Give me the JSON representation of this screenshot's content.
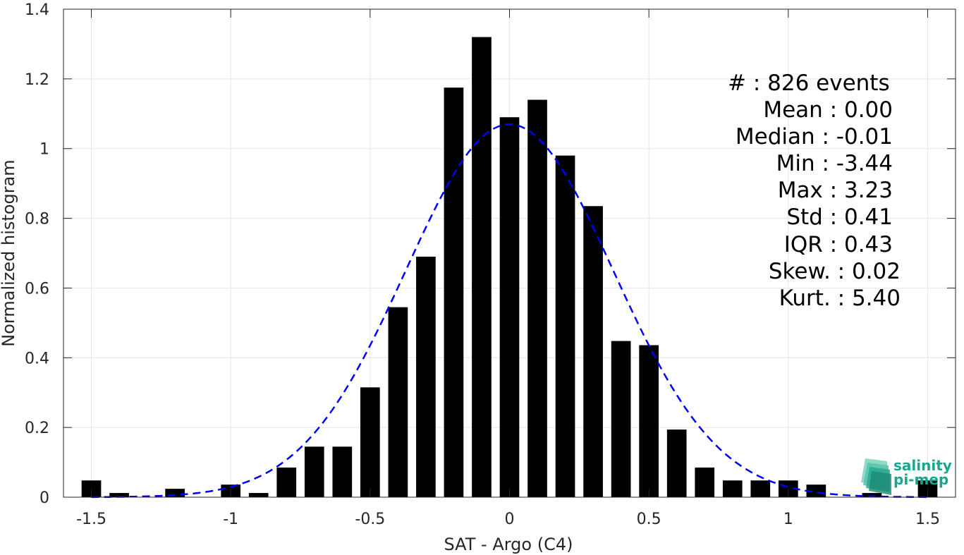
{
  "chart_data": {
    "type": "bar",
    "xlabel": "SAT - Argo (C4)",
    "ylabel": "Normalized histogram",
    "xlim": [
      -1.6,
      1.6
    ],
    "ylim": [
      0,
      1.4
    ],
    "xticks": [
      -1.5,
      -1,
      -0.5,
      0,
      0.5,
      1,
      1.5
    ],
    "xtick_labels": [
      "-1.5",
      "-1",
      "-0.5",
      "0",
      "0.5",
      "1",
      "1.5"
    ],
    "yticks": [
      0,
      0.2,
      0.4,
      0.6,
      0.8,
      1,
      1.2,
      1.4
    ],
    "ytick_labels": [
      "0",
      "0.2",
      "0.4",
      "0.6",
      "0.8",
      "1",
      "1.2",
      "1.4"
    ],
    "grid": true,
    "bar_color": "#000000",
    "curve_color": "#0000ff",
    "bins": [
      {
        "x": -1.5,
        "y": 0.048
      },
      {
        "x": -1.4,
        "y": 0.012
      },
      {
        "x": -1.2,
        "y": 0.024
      },
      {
        "x": -1.0,
        "y": 0.036
      },
      {
        "x": -0.9,
        "y": 0.012
      },
      {
        "x": -0.8,
        "y": 0.085
      },
      {
        "x": -0.7,
        "y": 0.145
      },
      {
        "x": -0.6,
        "y": 0.145
      },
      {
        "x": -0.5,
        "y": 0.315
      },
      {
        "x": -0.4,
        "y": 0.545
      },
      {
        "x": -0.3,
        "y": 0.69
      },
      {
        "x": -0.2,
        "y": 1.175
      },
      {
        "x": -0.1,
        "y": 1.32
      },
      {
        "x": 0.0,
        "y": 1.09
      },
      {
        "x": 0.1,
        "y": 1.14
      },
      {
        "x": 0.2,
        "y": 0.98
      },
      {
        "x": 0.3,
        "y": 0.835
      },
      {
        "x": 0.4,
        "y": 0.448
      },
      {
        "x": 0.5,
        "y": 0.436
      },
      {
        "x": 0.6,
        "y": 0.194
      },
      {
        "x": 0.7,
        "y": 0.085
      },
      {
        "x": 0.8,
        "y": 0.048
      },
      {
        "x": 0.9,
        "y": 0.048
      },
      {
        "x": 1.0,
        "y": 0.048
      },
      {
        "x": 1.1,
        "y": 0.036
      },
      {
        "x": 1.3,
        "y": 0.012
      },
      {
        "x": 1.5,
        "y": 0.048
      }
    ],
    "fit_curve": {
      "style": "dashed",
      "mean": 0.0,
      "std": 0.373
    }
  },
  "stats": [
    {
      "label": "#  : 826 events"
    },
    {
      "label": "Mean : 0.00"
    },
    {
      "label": "Median : -0.01"
    },
    {
      "label": "Min : -3.44"
    },
    {
      "label": "Max : 3.23"
    },
    {
      "label": "Std : 0.41"
    },
    {
      "label": "IQR : 0.43"
    },
    {
      "label": "Skew. : 0.02"
    },
    {
      "label": "Kurt. : 5.40"
    }
  ],
  "logo": {
    "line1": "salinity",
    "line2": "pi-mep",
    "color": "#1aa58c"
  }
}
